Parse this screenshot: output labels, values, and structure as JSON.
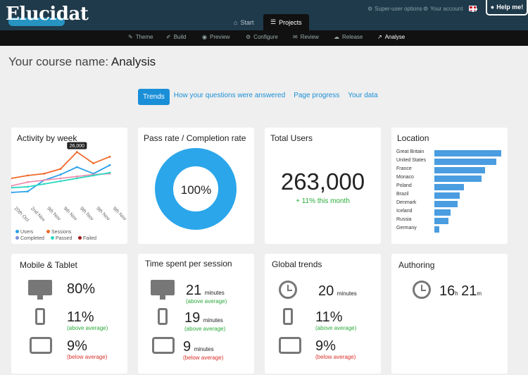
{
  "header": {
    "logo": "Elucidat",
    "util_super": "Super-user options",
    "util_account": "Your account",
    "help": "Help me!",
    "nav": [
      {
        "label": "Start"
      },
      {
        "label": "Projects"
      }
    ],
    "subnav": [
      "Theme",
      "Build",
      "Preview",
      "Configure",
      "Review",
      "Release",
      "Analyse"
    ]
  },
  "page": {
    "title_prefix": "Your course name:",
    "title_main": "Analysis",
    "tabs": [
      "Trends",
      "How your questions were answered",
      "Page progress",
      "Your data"
    ]
  },
  "activity": {
    "title": "Activity by week",
    "tooltip": "26,000",
    "legend": [
      "Users",
      "Sessions",
      "Completed",
      "Passed",
      "Failed"
    ],
    "legend_colors": [
      "#2aa0e8",
      "#f06a2a",
      "#7a8fd8",
      "#2ad8c0",
      "#a01818"
    ]
  },
  "chart_data": {
    "type": "line",
    "title": "Activity by week",
    "x": [
      "20th Oct",
      "2nd Nov",
      "9th Nov",
      "9th Nov",
      "9th Nov",
      "9th Nov",
      "9th Nov"
    ],
    "series": [
      {
        "name": "Sessions",
        "values": [
          12000,
          13500,
          14500,
          17000,
          26000,
          20000,
          23500
        ]
      },
      {
        "name": "Users",
        "values": [
          4500,
          5000,
          11000,
          14000,
          18000,
          14500,
          19000
        ]
      },
      {
        "name": "Completed",
        "values": [
          8000,
          10000,
          11000,
          12000,
          13000,
          14000,
          14500
        ]
      },
      {
        "name": "Passed",
        "values": [
          7000,
          7500,
          9000,
          10500,
          12000,
          13500,
          15000
        ]
      }
    ],
    "ylim": [
      0,
      30000
    ],
    "grid": false,
    "legend": "bottom"
  },
  "pass_rate": {
    "title": "Pass rate / Completion rate",
    "value": "100%"
  },
  "total_users": {
    "title": "Total Users",
    "value": "263,000",
    "change": "+ 11% this month"
  },
  "location": {
    "title": "Location",
    "items": [
      {
        "name": "Great Britain",
        "value": 95
      },
      {
        "name": "United States",
        "value": 88
      },
      {
        "name": "France",
        "value": 72
      },
      {
        "name": "Monaco",
        "value": 67
      },
      {
        "name": "Poland",
        "value": 42
      },
      {
        "name": "Brazil",
        "value": 36
      },
      {
        "name": "Denmark",
        "value": 33
      },
      {
        "name": "Iceland",
        "value": 23
      },
      {
        "name": "Russia",
        "value": 20
      },
      {
        "name": "Germany",
        "value": 7
      }
    ]
  },
  "mobile": {
    "title": "Mobile & Tablet",
    "desktop": "80%",
    "phone": "11%",
    "phone_note": "(above average)",
    "tablet": "9%",
    "tablet_note": "(below average)"
  },
  "time": {
    "title": "Time spent per session",
    "desktop": "21",
    "phone": "19",
    "tablet": "9",
    "unit": "minutes",
    "desktop_note": "(above average)",
    "phone_note": "(above average)",
    "tablet_note": "(below average)"
  },
  "global": {
    "title": "Global trends",
    "time": "20",
    "unit": "minutes",
    "phone": "11%",
    "phone_note": "(above average)",
    "tablet": "9%",
    "tablet_note": "(below average)"
  },
  "authoring": {
    "title": "Authoring",
    "hours": "16",
    "h": "h",
    "minutes": "21",
    "m": "m"
  }
}
